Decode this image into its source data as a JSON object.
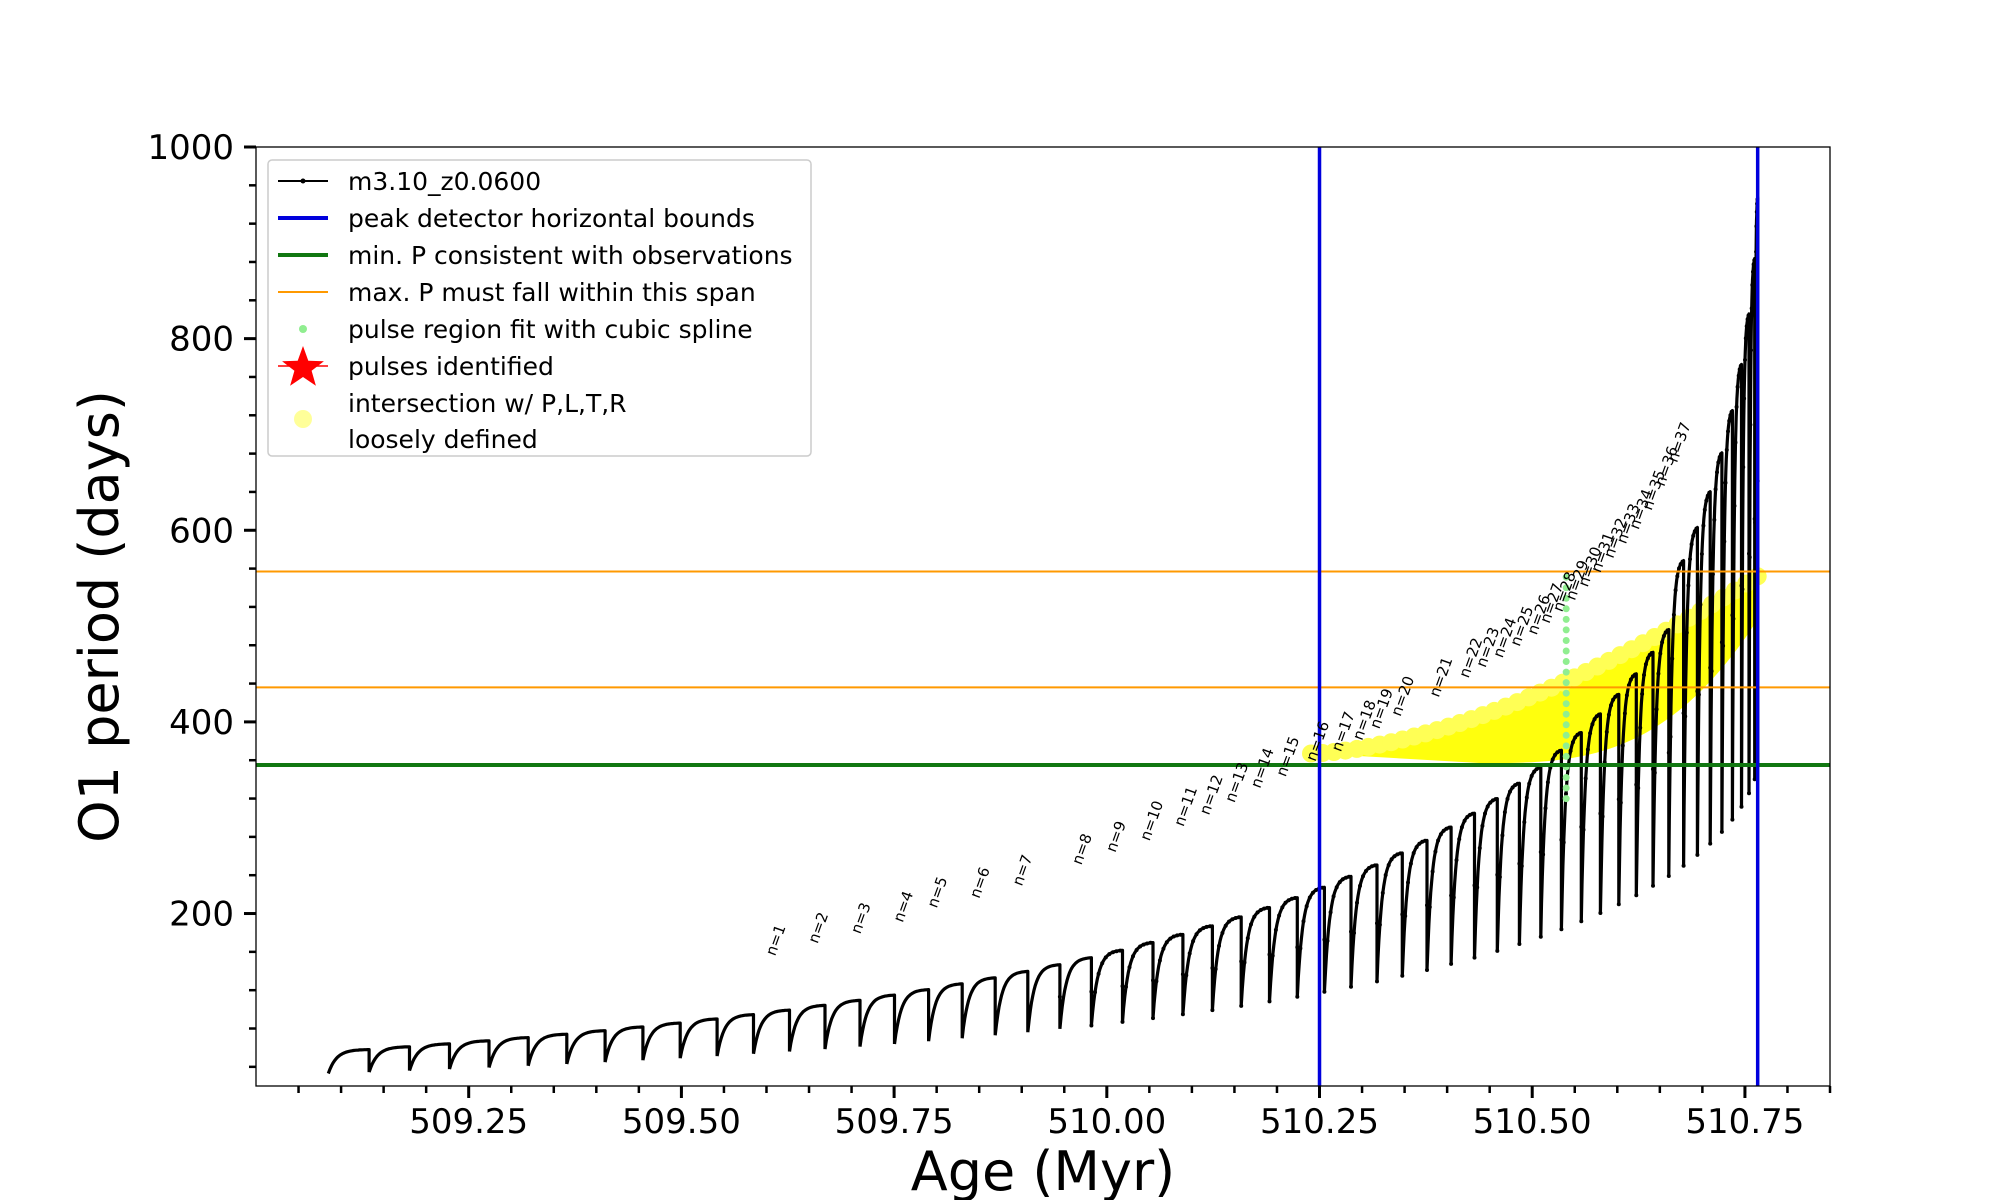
{
  "chart_data": {
    "type": "line",
    "title": "",
    "xlabel": "Age (Myr)",
    "ylabel": "O1 period (days)",
    "xlim": [
      509.0,
      510.85
    ],
    "ylim": [
      20,
      1000
    ],
    "xticks": [
      509.25,
      509.5,
      509.75,
      510.0,
      510.25,
      510.5,
      510.75
    ],
    "xtick_labels": [
      "509.25",
      "509.50",
      "509.75",
      "510.00",
      "510.25",
      "510.50",
      "510.75"
    ],
    "yticks": [
      200,
      400,
      600,
      800,
      1000
    ],
    "ytick_labels": [
      "200",
      "400",
      "600",
      "800",
      "1000"
    ],
    "grid": false,
    "legend_position": "top-left",
    "legend": [
      {
        "label": "m3.10_z0.0600",
        "style": "line-dot",
        "color": "#000000"
      },
      {
        "label": "peak detector horizontal bounds",
        "style": "line",
        "color": "#0000dd"
      },
      {
        "label": "min. P consistent with observations",
        "style": "line",
        "color": "#117711"
      },
      {
        "label": "max. P must fall within this span",
        "style": "thin-line",
        "color": "#ff9900"
      },
      {
        "label": "pulse region fit with cubic spline",
        "style": "dot",
        "color": "#90ee90"
      },
      {
        "label": "pulses identified",
        "style": "star",
        "color": "#ff0000"
      },
      {
        "label": "intersection w/ P,L,T,R",
        "label2": "loosely defined",
        "style": "big-dot",
        "color": "#ffff99"
      }
    ],
    "vertical_lines": [
      510.25,
      510.765
    ],
    "min_period": 355,
    "max_period_span": [
      436,
      557
    ],
    "series_start_age": 509.085,
    "series_end_age": 510.765,
    "pulse_peak_periods_start": 58,
    "pulse_peak_periods_growth": 1.05,
    "pulse_trough_periods_start": 33,
    "pulse_count": 54,
    "annotations": [
      {
        "label": "n=1",
        "x": 509.61,
        "y": 155
      },
      {
        "label": "n=2",
        "x": 509.66,
        "y": 168
      },
      {
        "label": "n=3",
        "x": 509.71,
        "y": 178
      },
      {
        "label": "n=4",
        "x": 509.76,
        "y": 190
      },
      {
        "label": "n=5",
        "x": 509.8,
        "y": 205
      },
      {
        "label": "n=6",
        "x": 509.85,
        "y": 215
      },
      {
        "label": "n=7",
        "x": 509.9,
        "y": 228
      },
      {
        "label": "n=8",
        "x": 509.97,
        "y": 250
      },
      {
        "label": "n=9",
        "x": 510.01,
        "y": 263
      },
      {
        "label": "n=10",
        "x": 510.05,
        "y": 275
      },
      {
        "label": "n=11",
        "x": 510.09,
        "y": 290
      },
      {
        "label": "n=12",
        "x": 510.12,
        "y": 302
      },
      {
        "label": "n=13",
        "x": 510.15,
        "y": 315
      },
      {
        "label": "n=14",
        "x": 510.18,
        "y": 330
      },
      {
        "label": "n=15",
        "x": 510.21,
        "y": 342
      },
      {
        "label": "n=16",
        "x": 510.245,
        "y": 358
      },
      {
        "label": "n=17",
        "x": 510.275,
        "y": 368
      },
      {
        "label": "n=18",
        "x": 510.3,
        "y": 380
      },
      {
        "label": "n=19",
        "x": 510.32,
        "y": 392
      },
      {
        "label": "n=20",
        "x": 510.345,
        "y": 405
      },
      {
        "label": "n=21",
        "x": 510.39,
        "y": 425
      },
      {
        "label": "n=22",
        "x": 510.425,
        "y": 445
      },
      {
        "label": "n=23",
        "x": 510.445,
        "y": 456
      },
      {
        "label": "n=24",
        "x": 510.465,
        "y": 466
      },
      {
        "label": "n=25",
        "x": 510.485,
        "y": 478
      },
      {
        "label": "n=26",
        "x": 510.505,
        "y": 490
      },
      {
        "label": "n=27",
        "x": 510.52,
        "y": 502
      },
      {
        "label": "n=28",
        "x": 510.535,
        "y": 514
      },
      {
        "label": "n=29",
        "x": 510.55,
        "y": 526
      },
      {
        "label": "n=30",
        "x": 510.565,
        "y": 540
      },
      {
        "label": "n=31",
        "x": 510.58,
        "y": 555
      },
      {
        "label": "n=32",
        "x": 510.595,
        "y": 570
      },
      {
        "label": "n=33",
        "x": 510.61,
        "y": 585
      },
      {
        "label": "n=34",
        "x": 510.625,
        "y": 600
      },
      {
        "label": "n=35",
        "x": 510.64,
        "y": 620
      },
      {
        "label": "n=36",
        "x": 510.655,
        "y": 645
      },
      {
        "label": "n=37",
        "x": 510.67,
        "y": 670
      }
    ]
  }
}
